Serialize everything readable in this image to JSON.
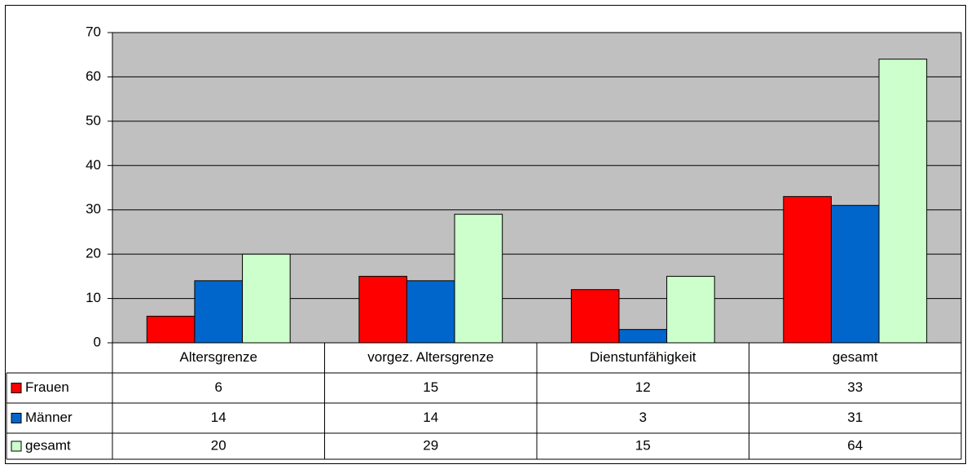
{
  "chart_data": {
    "type": "bar",
    "categories": [
      "Altersgrenze",
      "vorgez. Altersgrenze",
      "Dienstunfähigkeit",
      "gesamt"
    ],
    "series": [
      {
        "name": "Frauen",
        "color": "#ff0000",
        "values": [
          6,
          15,
          12,
          33
        ]
      },
      {
        "name": "Männer",
        "color": "#0066cc",
        "values": [
          14,
          14,
          3,
          31
        ]
      },
      {
        "name": "gesamt",
        "color": "#ccffcc",
        "values": [
          20,
          29,
          15,
          64
        ]
      }
    ],
    "ylim": [
      0,
      70
    ],
    "yticks": [
      0,
      10,
      20,
      30,
      40,
      50,
      60,
      70
    ],
    "grid": true,
    "plot_background": "#c0c0c0"
  }
}
